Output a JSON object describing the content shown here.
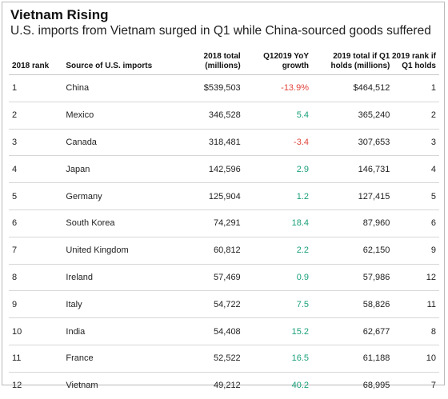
{
  "title": "Vietnam Rising",
  "subtitle": "U.S. imports from Vietnam surged in Q1 while China-sourced goods suffered",
  "colors": {
    "negative": "#e0443a",
    "positive": "#1aa07a"
  },
  "headers": {
    "rank": "2018 rank",
    "source": "Source of U.S. imports",
    "total_2018": [
      "2018 total",
      "(millions)"
    ],
    "growth": [
      "Q12019 YoY",
      "growth"
    ],
    "total_2019": [
      "2019 total if Q1",
      "holds (millions)"
    ],
    "rank_2019": [
      "2019 rank if",
      "Q1 holds"
    ]
  },
  "rows": [
    {
      "rank": "1",
      "source": "China",
      "total_2018": "$539,503",
      "growth": "-13.9%",
      "sign": "neg",
      "total_2019": "$464,512",
      "rank_2019": "1"
    },
    {
      "rank": "2",
      "source": "Mexico",
      "total_2018": "346,528",
      "growth": "5.4",
      "sign": "pos",
      "total_2019": "365,240",
      "rank_2019": "2"
    },
    {
      "rank": "3",
      "source": "Canada",
      "total_2018": "318,481",
      "growth": "-3.4",
      "sign": "neg",
      "total_2019": "307,653",
      "rank_2019": "3"
    },
    {
      "rank": "4",
      "source": "Japan",
      "total_2018": "142,596",
      "growth": "2.9",
      "sign": "pos",
      "total_2019": "146,731",
      "rank_2019": "4"
    },
    {
      "rank": "5",
      "source": "Germany",
      "total_2018": "125,904",
      "growth": "1.2",
      "sign": "pos",
      "total_2019": "127,415",
      "rank_2019": "5"
    },
    {
      "rank": "6",
      "source": "South Korea",
      "total_2018": "74,291",
      "growth": "18.4",
      "sign": "pos",
      "total_2019": "87,960",
      "rank_2019": "6"
    },
    {
      "rank": "7",
      "source": "United Kingdom",
      "total_2018": "60,812",
      "growth": "2.2",
      "sign": "pos",
      "total_2019": "62,150",
      "rank_2019": "9"
    },
    {
      "rank": "8",
      "source": "Ireland",
      "total_2018": "57,469",
      "growth": "0.9",
      "sign": "pos",
      "total_2019": "57,986",
      "rank_2019": "12"
    },
    {
      "rank": "9",
      "source": "Italy",
      "total_2018": "54,722",
      "growth": "7.5",
      "sign": "pos",
      "total_2019": "58,826",
      "rank_2019": "11"
    },
    {
      "rank": "10",
      "source": "India",
      "total_2018": "54,408",
      "growth": "15.2",
      "sign": "pos",
      "total_2019": "62,677",
      "rank_2019": "8"
    },
    {
      "rank": "11",
      "source": "France",
      "total_2018": "52,522",
      "growth": "16.5",
      "sign": "pos",
      "total_2019": "61,188",
      "rank_2019": "10"
    },
    {
      "rank": "12",
      "source": "Vietnam",
      "total_2018": "49,212",
      "growth": "40.2",
      "sign": "pos",
      "total_2019": "68,995",
      "rank_2019": "7"
    }
  ]
}
